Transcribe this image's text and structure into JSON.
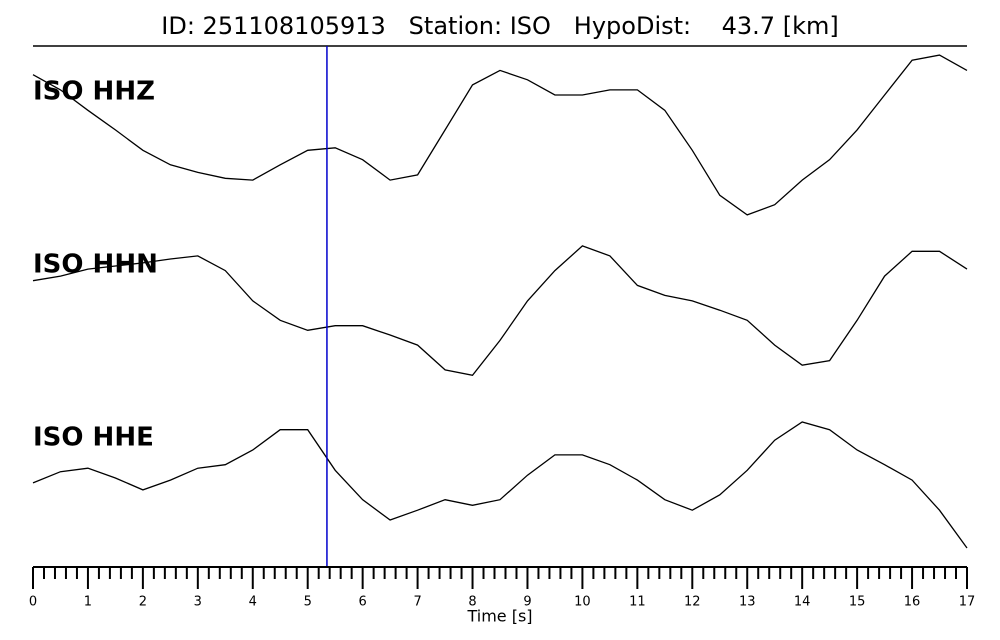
{
  "chart_data": {
    "type": "line",
    "title": "ID: 251108105913   Station: ISO   HypoDist:    43.7 [km]",
    "x_label": "Time [s]",
    "xlim": [
      0,
      17
    ],
    "xticks": [
      0,
      1,
      2,
      3,
      4,
      5,
      6,
      7,
      8,
      9,
      10,
      11,
      12,
      13,
      14,
      15,
      16,
      17
    ],
    "ylim": [
      -1,
      1
    ],
    "pick_time": 5.35,
    "pick_color": "#0000cc",
    "label_color": "#4a9a0a",
    "x": [
      0,
      0.5,
      1,
      1.5,
      2,
      2.5,
      3,
      3.5,
      4,
      4.5,
      5,
      5.5,
      6,
      6.5,
      7,
      7.5,
      8,
      8.5,
      9,
      9.5,
      10,
      10.5,
      11,
      11.5,
      12,
      12.5,
      13,
      13.5,
      14,
      14.5,
      15,
      15.5,
      16,
      16.5,
      17
    ],
    "series": [
      {
        "name": "ISO HHZ",
        "color": "#000000",
        "values": [
          0.71,
          0.53,
          0.29,
          0.06,
          -0.18,
          -0.35,
          -0.44,
          -0.51,
          -0.53,
          -0.35,
          -0.18,
          -0.15,
          -0.29,
          -0.53,
          -0.47,
          0.06,
          0.59,
          0.76,
          0.65,
          0.47,
          0.47,
          0.53,
          0.53,
          0.29,
          -0.18,
          -0.71,
          -0.94,
          -0.82,
          -0.53,
          -0.29,
          0.06,
          0.47,
          0.88,
          0.94,
          0.76
        ]
      },
      {
        "name": "ISO HHN",
        "color": "#000000",
        "values": [
          0.41,
          0.47,
          0.56,
          0.6,
          0.64,
          0.69,
          0.73,
          0.54,
          0.15,
          -0.1,
          -0.23,
          -0.17,
          -0.17,
          -0.29,
          -0.42,
          -0.74,
          -0.81,
          -0.36,
          0.15,
          0.54,
          0.86,
          0.73,
          0.35,
          0.22,
          0.15,
          0.03,
          -0.1,
          -0.42,
          -0.68,
          -0.62,
          -0.1,
          0.47,
          0.79,
          0.79,
          0.56
        ]
      },
      {
        "name": "ISO HHE",
        "color": "#000000",
        "values": [
          0.03,
          0.19,
          0.24,
          0.1,
          -0.07,
          0.07,
          0.24,
          0.29,
          0.5,
          0.79,
          0.79,
          0.21,
          -0.21,
          -0.5,
          -0.36,
          -0.21,
          -0.29,
          -0.21,
          0.14,
          0.43,
          0.43,
          0.29,
          0.07,
          -0.21,
          -0.36,
          -0.14,
          0.21,
          0.64,
          0.9,
          0.79,
          0.5,
          0.29,
          0.07,
          -0.36,
          -0.9
        ]
      }
    ]
  }
}
